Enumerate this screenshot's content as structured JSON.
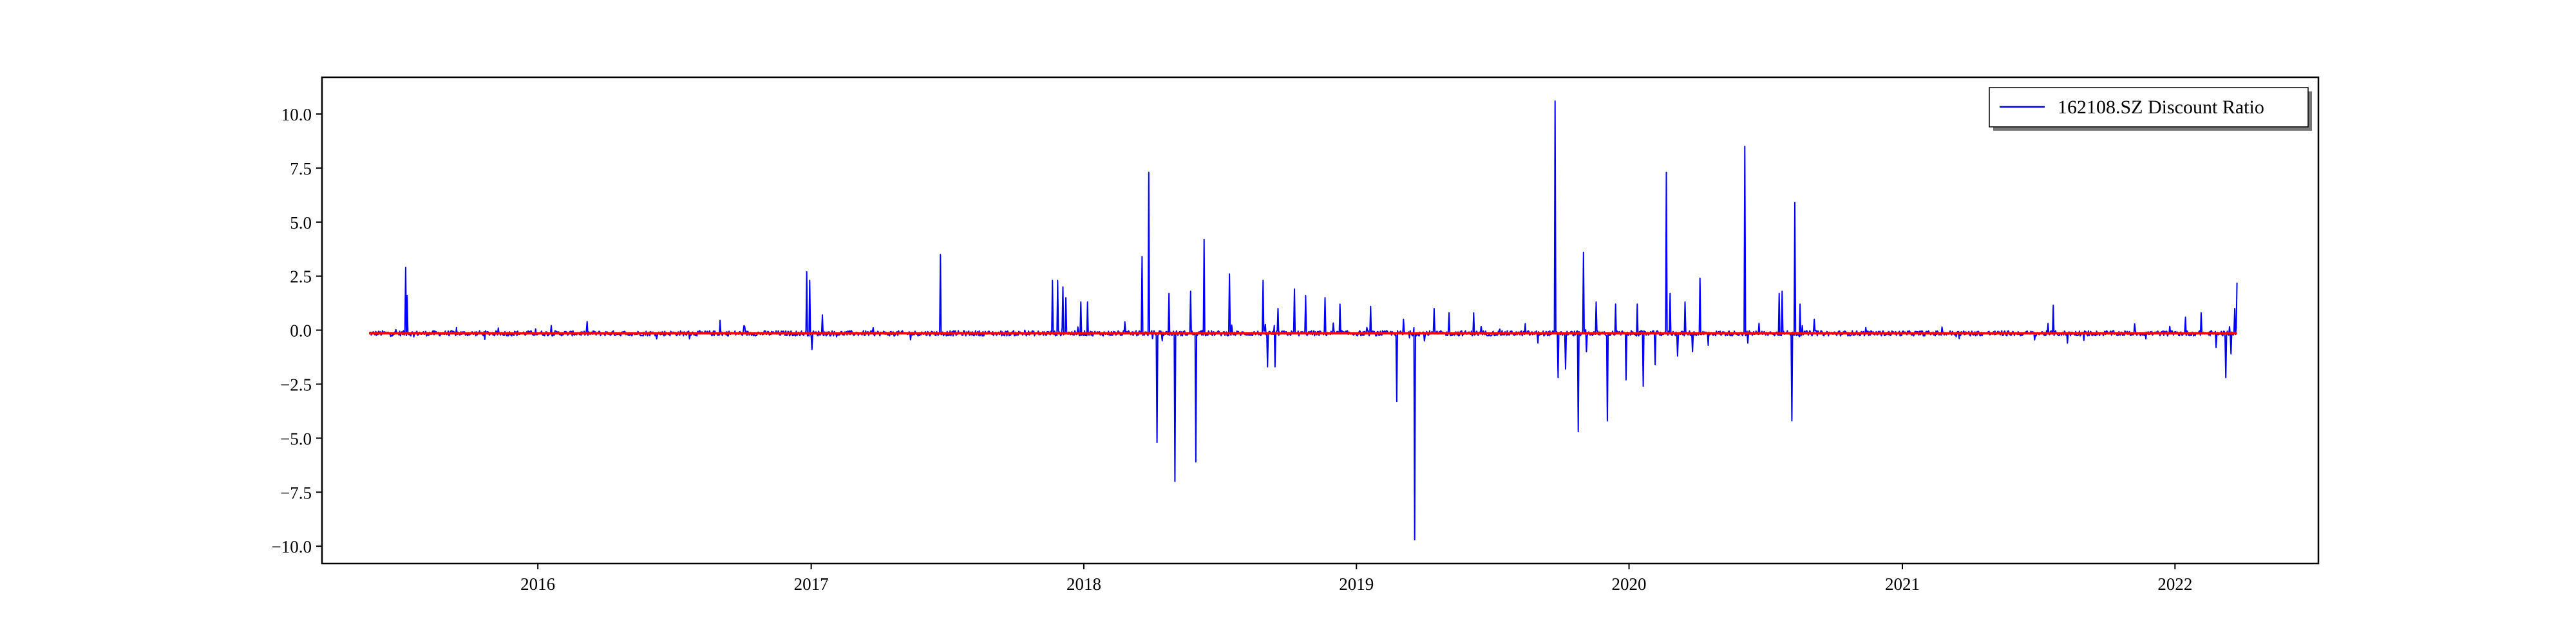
{
  "chart_data": {
    "type": "line",
    "title": "",
    "xlabel": "",
    "ylabel": "",
    "x_ticks": [
      "2016",
      "2017",
      "2018",
      "2019",
      "2020",
      "2021",
      "2022"
    ],
    "y_ticks": [
      "−10.0",
      "−7.5",
      "−5.0",
      "−2.5",
      "0.0",
      "2.5",
      "5.0",
      "7.5",
      "10.0"
    ],
    "xlim": [
      "2015-03-18",
      "2022-07-12"
    ],
    "ylim": [
      -10.8,
      11.7
    ],
    "grid": false,
    "legend_position": "top-right",
    "series": [
      {
        "name": "162108.SZ Discount Ratio",
        "color": "#0000ff",
        "x_start": "2015-05-20",
        "x_end": "2022-03-25",
        "baseline": -0.15,
        "noise": 0.12,
        "spikes": [
          [
            "2015-07-08",
            2.9
          ],
          [
            "2015-07-10",
            1.6
          ],
          [
            "2016-09-01",
            0.45
          ],
          [
            "2016-12-26",
            2.7
          ],
          [
            "2016-12-30",
            2.3
          ],
          [
            "2017-01-02",
            -0.9
          ],
          [
            "2017-01-16",
            0.7
          ],
          [
            "2017-06-23",
            3.5
          ],
          [
            "2017-11-20",
            2.3
          ],
          [
            "2017-11-27",
            2.3
          ],
          [
            "2017-12-04",
            2.0
          ],
          [
            "2017-12-08",
            1.5
          ],
          [
            "2017-12-28",
            1.3
          ],
          [
            "2018-01-06",
            1.3
          ],
          [
            "2018-03-20",
            3.4
          ],
          [
            "2018-03-29",
            7.3
          ],
          [
            "2018-04-09",
            -5.2
          ],
          [
            "2018-04-25",
            1.7
          ],
          [
            "2018-05-03",
            -7.0
          ],
          [
            "2018-05-24",
            1.8
          ],
          [
            "2018-05-31",
            -6.1
          ],
          [
            "2018-06-11",
            4.2
          ],
          [
            "2018-07-15",
            2.6
          ],
          [
            "2018-08-29",
            2.3
          ],
          [
            "2018-09-04",
            -1.7
          ],
          [
            "2018-09-14",
            -1.7
          ],
          [
            "2018-09-18",
            1.0
          ],
          [
            "2018-10-10",
            1.9
          ],
          [
            "2018-10-25",
            1.6
          ],
          [
            "2018-11-20",
            1.5
          ],
          [
            "2018-12-10",
            1.2
          ],
          [
            "2019-01-20",
            1.1
          ],
          [
            "2019-02-24",
            -3.3
          ],
          [
            "2019-03-05",
            0.5
          ],
          [
            "2019-03-20",
            -9.7
          ],
          [
            "2019-04-02",
            -0.5
          ],
          [
            "2019-04-15",
            1.0
          ],
          [
            "2019-05-05",
            0.8
          ],
          [
            "2019-06-07",
            0.8
          ],
          [
            "2019-08-15",
            0.3
          ],
          [
            "2019-09-01",
            -0.6
          ],
          [
            "2019-09-24",
            10.6
          ],
          [
            "2019-09-28",
            -2.2
          ],
          [
            "2019-10-08",
            -1.8
          ],
          [
            "2019-10-25",
            -4.7
          ],
          [
            "2019-11-01",
            3.6
          ],
          [
            "2019-11-05",
            -1.0
          ],
          [
            "2019-11-18",
            1.3
          ],
          [
            "2019-12-03",
            -4.2
          ],
          [
            "2019-12-14",
            1.2
          ],
          [
            "2019-12-28",
            -2.3
          ],
          [
            "2020-01-12",
            1.2
          ],
          [
            "2020-01-20",
            -2.6
          ],
          [
            "2020-02-05",
            -1.6
          ],
          [
            "2020-02-20",
            7.3
          ],
          [
            "2020-02-25",
            1.7
          ],
          [
            "2020-03-06",
            -1.2
          ],
          [
            "2020-03-16",
            1.3
          ],
          [
            "2020-03-26",
            -1.0
          ],
          [
            "2020-04-05",
            2.4
          ],
          [
            "2020-04-16",
            -0.7
          ],
          [
            "2020-06-04",
            8.5
          ],
          [
            "2020-06-08",
            -0.6
          ],
          [
            "2020-07-20",
            1.7
          ],
          [
            "2020-07-24",
            1.8
          ],
          [
            "2020-08-06",
            -4.2
          ],
          [
            "2020-08-10",
            5.9
          ],
          [
            "2020-08-17",
            1.2
          ],
          [
            "2020-09-05",
            0.5
          ],
          [
            "2021-07-22",
            1.15
          ],
          [
            "2021-08-10",
            -0.6
          ],
          [
            "2022-01-15",
            0.6
          ],
          [
            "2022-02-05",
            0.8
          ],
          [
            "2022-02-25",
            -0.8
          ],
          [
            "2022-03-10",
            -2.2
          ],
          [
            "2022-03-17",
            -1.1
          ],
          [
            "2022-03-22",
            1.0
          ],
          [
            "2022-03-25",
            2.2
          ]
        ]
      }
    ],
    "reference_line": {
      "color": "#ff0000",
      "y": -0.15,
      "x_start": "2015-05-20",
      "x_end": "2022-03-25"
    }
  }
}
